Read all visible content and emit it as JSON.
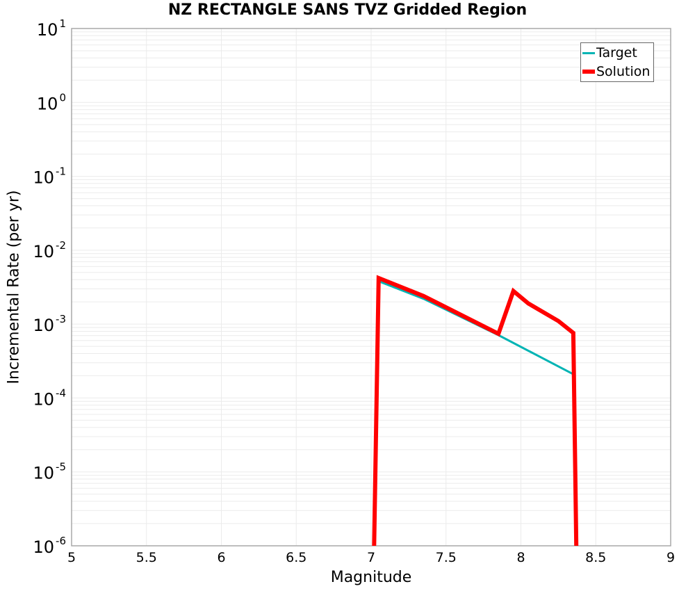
{
  "chart_data": {
    "type": "line",
    "title": "NZ RECTANGLE SANS TVZ Gridded Region",
    "xlabel": "Magnitude",
    "ylabel": "Incremental Rate (per yr)",
    "xlim": [
      5,
      9
    ],
    "ylim": [
      1e-06,
      10
    ],
    "yscale": "log",
    "grid": true,
    "legend_position": "upper right",
    "x_ticks": [
      "5",
      "5.5",
      "6",
      "6.5",
      "7",
      "7.5",
      "8",
      "8.5",
      "9"
    ],
    "y_ticks": [
      {
        "base": "10",
        "exp": "1"
      },
      {
        "base": "10",
        "exp": "0"
      },
      {
        "base": "10",
        "exp": "-1"
      },
      {
        "base": "10",
        "exp": "-2"
      },
      {
        "base": "10",
        "exp": "-3"
      },
      {
        "base": "10",
        "exp": "-4"
      },
      {
        "base": "10",
        "exp": "-5"
      },
      {
        "base": "10",
        "exp": "-6"
      }
    ],
    "series": [
      {
        "name": "Target",
        "color": "#00b4b4",
        "line_width": 3,
        "x": [
          7.05,
          7.35,
          7.85,
          8.35
        ],
        "y": [
          0.0038,
          0.0022,
          0.00071,
          0.00021
        ]
      },
      {
        "name": "Solution",
        "color": "#ff0000",
        "line_width": 6,
        "x": [
          7.02,
          7.05,
          7.35,
          7.85,
          7.95,
          8.05,
          8.25,
          8.35,
          8.37
        ],
        "y": [
          1e-06,
          0.0042,
          0.0024,
          0.00074,
          0.0028,
          0.0019,
          0.0011,
          0.00076,
          1e-06
        ]
      }
    ]
  },
  "legend": {
    "items": [
      {
        "label": "Target",
        "color": "#00b4b4"
      },
      {
        "label": "Solution",
        "color": "#ff0000"
      }
    ]
  }
}
